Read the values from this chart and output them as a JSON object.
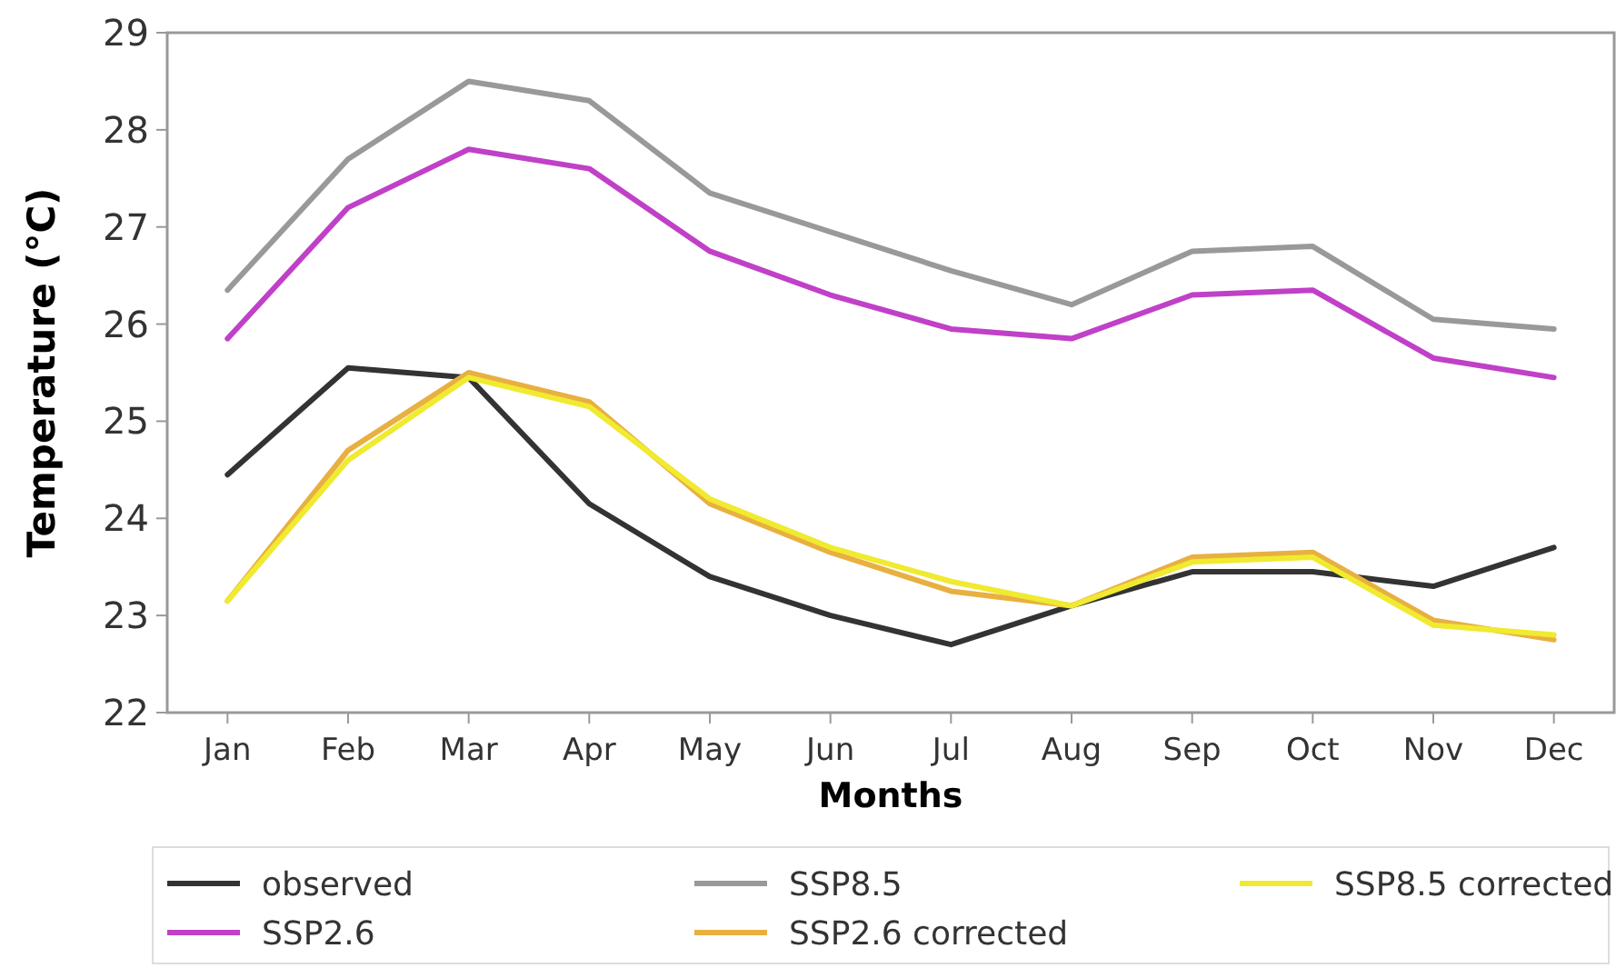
{
  "chart_data": {
    "type": "line",
    "xlabel": "Months",
    "ylabel": "Temperature (°C)",
    "categories": [
      "Jan",
      "Feb",
      "Mar",
      "Apr",
      "May",
      "Jun",
      "Jul",
      "Aug",
      "Sep",
      "Oct",
      "Nov",
      "Dec"
    ],
    "series": [
      {
        "name": "observed",
        "color": "#333333",
        "values": [
          24.45,
          25.55,
          25.45,
          24.15,
          23.4,
          23.0,
          22.7,
          23.1,
          23.45,
          23.45,
          23.3,
          23.7
        ]
      },
      {
        "name": "SSP2.6",
        "color": "#c040c8",
        "values": [
          25.85,
          27.2,
          27.8,
          27.6,
          26.75,
          26.3,
          25.95,
          25.85,
          26.3,
          26.35,
          25.65,
          25.45
        ]
      },
      {
        "name": "SSP8.5",
        "color": "#999999",
        "values": [
          26.35,
          27.7,
          28.5,
          28.3,
          27.35,
          26.95,
          26.55,
          26.2,
          26.75,
          26.8,
          26.05,
          25.95
        ]
      },
      {
        "name": "SSP2.6 corrected",
        "color": "#e8b040",
        "values": [
          23.15,
          24.7,
          25.5,
          25.2,
          24.15,
          23.65,
          23.25,
          23.1,
          23.6,
          23.65,
          22.95,
          22.75
        ]
      },
      {
        "name": "SSP8.5 corrected",
        "color": "#f0ea30",
        "values": [
          23.15,
          24.6,
          25.45,
          25.15,
          24.2,
          23.7,
          23.35,
          23.1,
          23.55,
          23.6,
          22.9,
          22.8
        ]
      }
    ],
    "ylim": [
      22,
      29
    ],
    "yticks": [
      22,
      23,
      24,
      25,
      26,
      27,
      28,
      29
    ],
    "grid": false,
    "legend": "bottom",
    "marker": "none",
    "line_style": "solid"
  }
}
